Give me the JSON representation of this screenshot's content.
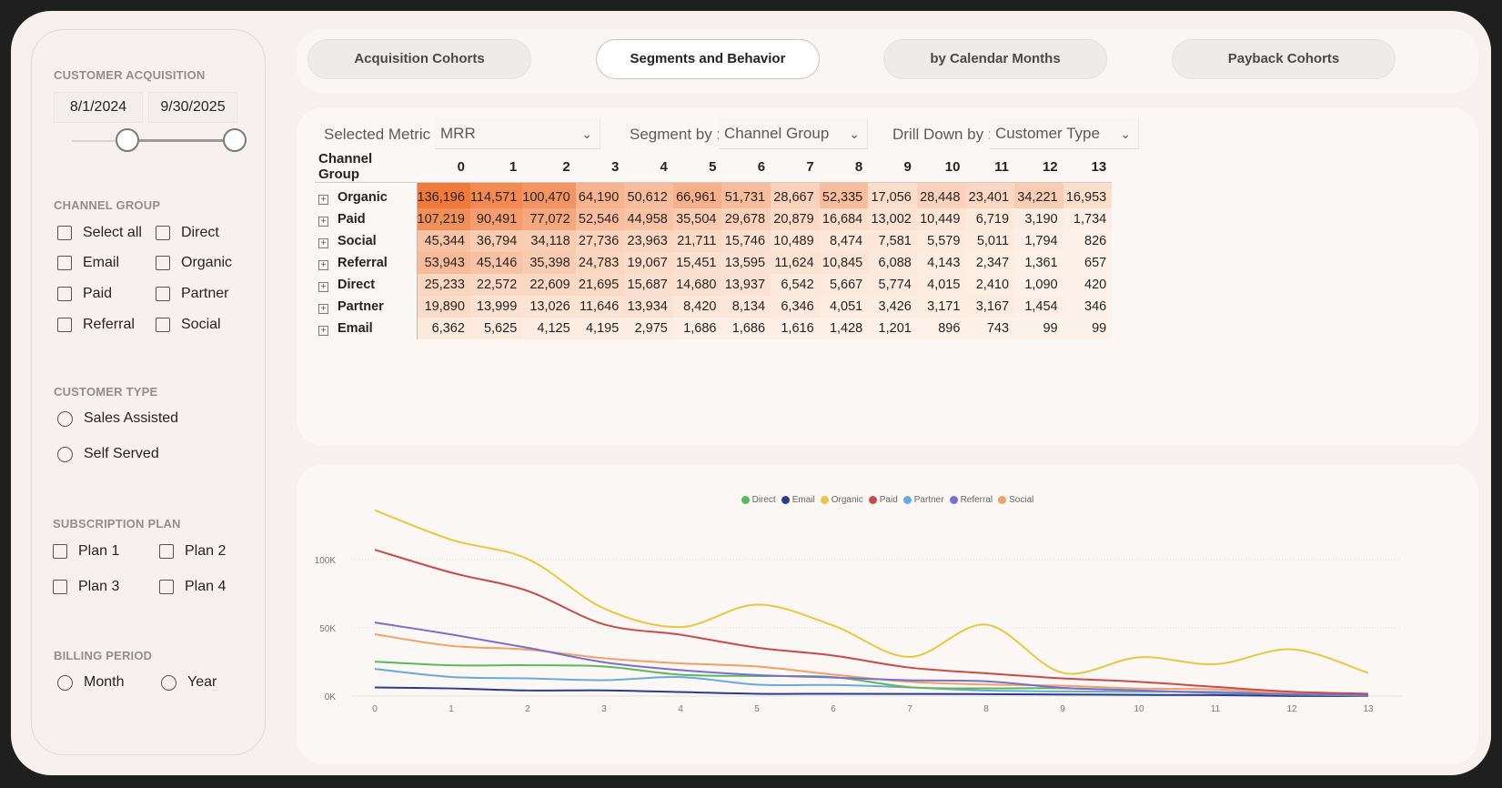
{
  "sidebar": {
    "customer_acquisition": {
      "title": "CUSTOMER ACQUISITION",
      "start_date": "8/1/2024",
      "end_date": "9/30/2025"
    },
    "channel_group": {
      "title": "CHANNEL GROUP",
      "options": [
        "Select all",
        "Direct",
        "Email",
        "Organic",
        "Paid",
        "Partner",
        "Referral",
        "Social"
      ]
    },
    "customer_type": {
      "title": "CUSTOMER TYPE",
      "options": [
        "Sales Assisted",
        "Self Served"
      ]
    },
    "subscription_plan": {
      "title": "SUBSCRIPTION PLAN",
      "options": [
        "Plan 1",
        "Plan 2",
        "Plan 3",
        "Plan 4"
      ]
    },
    "billing_period": {
      "title": "BILLING PERIOD",
      "options": [
        "Month",
        "Year"
      ]
    }
  },
  "tabs": [
    {
      "label": "Acquisition Cohorts",
      "active": false
    },
    {
      "label": "Segments and Behavior",
      "active": true
    },
    {
      "label": "by Calendar Months",
      "active": false
    },
    {
      "label": "Payback Cohorts",
      "active": false
    }
  ],
  "filters": {
    "metric_label": "Selected Metric :",
    "metric_value": "MRR",
    "segment_label": "Segment by :",
    "segment_value": "Channel Group",
    "drill_label": "Drill Down by :",
    "drill_value": "Customer Type"
  },
  "matrix": {
    "row_header": "Channel Group",
    "columns": [
      "0",
      "1",
      "2",
      "3",
      "4",
      "5",
      "6",
      "7",
      "8",
      "9",
      "10",
      "11",
      "12",
      "13"
    ],
    "rows": [
      {
        "label": "Organic",
        "values": [
          "136,196",
          "114,571",
          "100,470",
          "64,190",
          "50,612",
          "66,961",
          "51,731",
          "28,667",
          "52,335",
          "17,056",
          "28,448",
          "23,401",
          "34,221",
          "16,953"
        ]
      },
      {
        "label": "Paid",
        "values": [
          "107,219",
          "90,491",
          "77,072",
          "52,546",
          "44,958",
          "35,504",
          "29,678",
          "20,879",
          "16,684",
          "13,002",
          "10,449",
          "6,719",
          "3,190",
          "1,734"
        ]
      },
      {
        "label": "Social",
        "values": [
          "45,344",
          "36,794",
          "34,118",
          "27,736",
          "23,963",
          "21,711",
          "15,746",
          "10,489",
          "8,474",
          "7,581",
          "5,579",
          "5,011",
          "1,794",
          "826"
        ]
      },
      {
        "label": "Referral",
        "values": [
          "53,943",
          "45,146",
          "35,398",
          "24,783",
          "19,067",
          "15,451",
          "13,595",
          "11,624",
          "10,845",
          "6,088",
          "4,143",
          "2,347",
          "1,361",
          "657"
        ]
      },
      {
        "label": "Direct",
        "values": [
          "25,233",
          "22,572",
          "22,609",
          "21,695",
          "15,687",
          "14,680",
          "13,937",
          "6,542",
          "5,667",
          "5,774",
          "4,015",
          "2,410",
          "1,090",
          "420"
        ]
      },
      {
        "label": "Partner",
        "values": [
          "19,890",
          "13,999",
          "13,026",
          "11,646",
          "13,934",
          "8,420",
          "8,134",
          "6,346",
          "4,051",
          "3,426",
          "3,171",
          "3,167",
          "1,454",
          "346"
        ]
      },
      {
        "label": "Email",
        "values": [
          "6,362",
          "5,625",
          "4,125",
          "4,195",
          "2,975",
          "1,686",
          "1,686",
          "1,616",
          "1,428",
          "1,201",
          "896",
          "743",
          "99",
          "99"
        ]
      }
    ]
  },
  "chart_data": {
    "type": "line",
    "x": [
      0,
      1,
      2,
      3,
      4,
      5,
      6,
      7,
      8,
      9,
      10,
      11,
      12,
      13
    ],
    "x_ticks": [
      "0",
      "1",
      "2",
      "3",
      "4",
      "5",
      "6",
      "7",
      "8",
      "9",
      "10",
      "11",
      "12",
      "13"
    ],
    "y_ticks": [
      "0K",
      "50K",
      "100K"
    ],
    "ylim": [
      0,
      140000
    ],
    "legend_position": "top-center",
    "grid": true,
    "series": [
      {
        "name": "Direct",
        "color": "#5bb85b",
        "values": [
          25233,
          22572,
          22609,
          21695,
          15687,
          14680,
          13937,
          6542,
          5667,
          5774,
          4015,
          2410,
          1090,
          420
        ]
      },
      {
        "name": "Email",
        "color": "#2a3d8a",
        "values": [
          6362,
          5625,
          4125,
          4195,
          2975,
          1686,
          1686,
          1616,
          1428,
          1201,
          896,
          743,
          99,
          99
        ]
      },
      {
        "name": "Organic",
        "color": "#e8c840",
        "values": [
          136196,
          114571,
          100470,
          64190,
          50612,
          66961,
          51731,
          28667,
          52335,
          17056,
          28448,
          23401,
          34221,
          16953
        ]
      },
      {
        "name": "Paid",
        "color": "#c94a4a",
        "values": [
          107219,
          90491,
          77072,
          52546,
          44958,
          35504,
          29678,
          20879,
          16684,
          13002,
          10449,
          6719,
          3190,
          1734
        ]
      },
      {
        "name": "Partner",
        "color": "#6aaad8",
        "values": [
          19890,
          13999,
          13026,
          11646,
          13934,
          8420,
          8134,
          6346,
          4051,
          3426,
          3171,
          3167,
          1454,
          346
        ]
      },
      {
        "name": "Referral",
        "color": "#7a6ed0",
        "values": [
          53943,
          45146,
          35398,
          24783,
          19067,
          15451,
          13595,
          11624,
          10845,
          6088,
          4143,
          2347,
          1361,
          657
        ]
      },
      {
        "name": "Social",
        "color": "#f0a068",
        "values": [
          45344,
          36794,
          34118,
          27736,
          23963,
          21711,
          15746,
          10489,
          8474,
          7581,
          5579,
          5011,
          1794,
          826
        ]
      }
    ]
  },
  "colors": {
    "heat_high": "#f07a3a",
    "heat_low": "#fdf1ea",
    "background": "#f6f1ee"
  }
}
